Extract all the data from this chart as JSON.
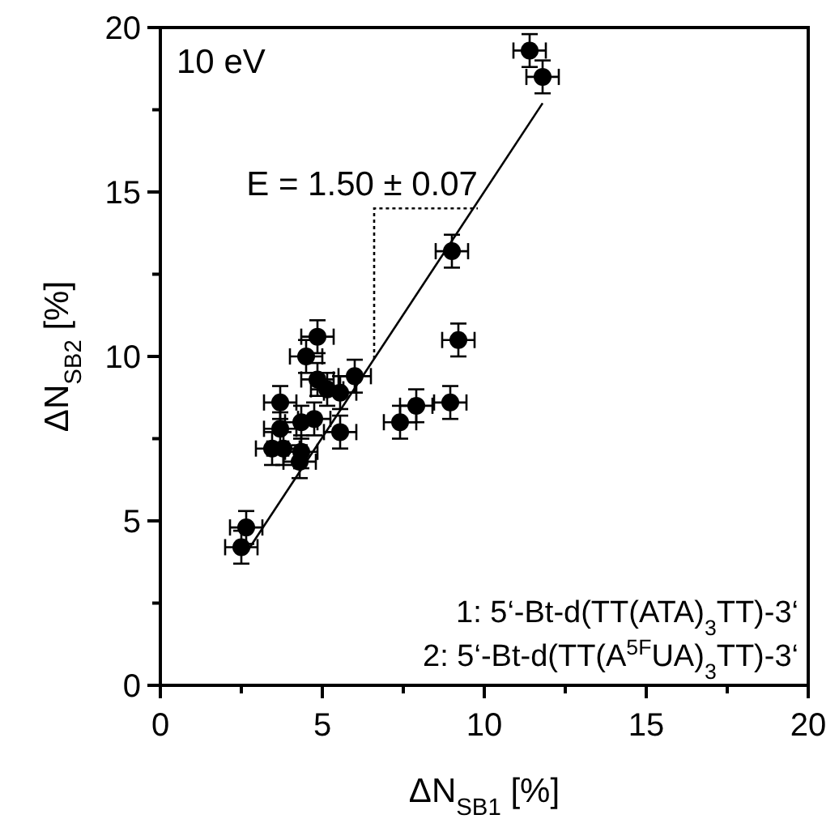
{
  "chart_data": {
    "type": "scatter",
    "xlabel": "ΔN$_{SB1}$ [%]",
    "ylabel": "ΔN$_{SB2}$ [%]",
    "xlim": [
      0,
      20
    ],
    "ylim": [
      0,
      20
    ],
    "xticks": [
      0,
      {
        "value": 2.5,
        "label": null
      },
      5,
      {
        "value": 7.5,
        "label": null
      },
      10,
      {
        "value": 12.5,
        "label": null
      },
      15,
      {
        "value": 17.5,
        "label": null
      },
      20
    ],
    "yticks": [
      0,
      {
        "value": 2.5,
        "label": null
      },
      5,
      {
        "value": 7.5,
        "label": null
      },
      10,
      {
        "value": 12.5,
        "label": null
      },
      15,
      {
        "value": 17.5,
        "label": null
      },
      20
    ],
    "grid": false,
    "marker": "circle",
    "series": [
      {
        "color": "#000000",
        "x": [
          11.4,
          11.8,
          9.0,
          9.2,
          4.85,
          4.5,
          4.85,
          6.0,
          5.15,
          5.55,
          3.7,
          7.9,
          8.95,
          4.75,
          4.35,
          3.7,
          7.4,
          5.55,
          3.45,
          3.8,
          4.35,
          4.3,
          2.65,
          2.5
        ],
        "values": [
          19.3,
          18.5,
          13.2,
          10.5,
          10.6,
          10.0,
          9.3,
          9.4,
          9.0,
          8.9,
          8.6,
          8.5,
          8.6,
          8.1,
          8.0,
          7.8,
          8.0,
          7.7,
          7.2,
          7.2,
          7.1,
          6.8,
          4.8,
          4.2
        ],
        "errors": [
          0.5,
          0.5,
          0.5,
          0.5,
          0.5,
          0.5,
          0.5,
          0.5,
          0.5,
          0.5,
          0.5,
          0.5,
          0.5,
          0.5,
          0.5,
          0.5,
          0.5,
          0.5,
          0.5,
          0.5,
          0.5,
          0.5,
          0.5,
          0.5
        ],
        "xerrors": [
          0.5,
          0.5,
          0.5,
          0.5,
          0.5,
          0.5,
          0.5,
          0.5,
          0.5,
          0.5,
          0.5,
          0.5,
          0.5,
          0.5,
          0.5,
          0.5,
          0.5,
          0.5,
          0.5,
          0.5,
          0.5,
          0.5,
          0.5,
          0.5
        ]
      },
      {
        "type": "line",
        "color": "#000000",
        "x": [
          2.7,
          11.8
        ],
        "values": [
          4.1,
          17.7
        ],
        "marker": "none",
        "line_style": "solid"
      }
    ],
    "annotations": [
      "10 eV",
      {
        "text": "E = 1.50 ± 0.07",
        "x": 9.8,
        "y": 14.5
      },
      "1: 5‘-Bt-d(TT(ATA)$_{3}$TT)-3‘",
      "2: 5‘-Bt-d(TT(A$^{5F}$UA)$_{3}$TT)-3‘"
    ]
  }
}
